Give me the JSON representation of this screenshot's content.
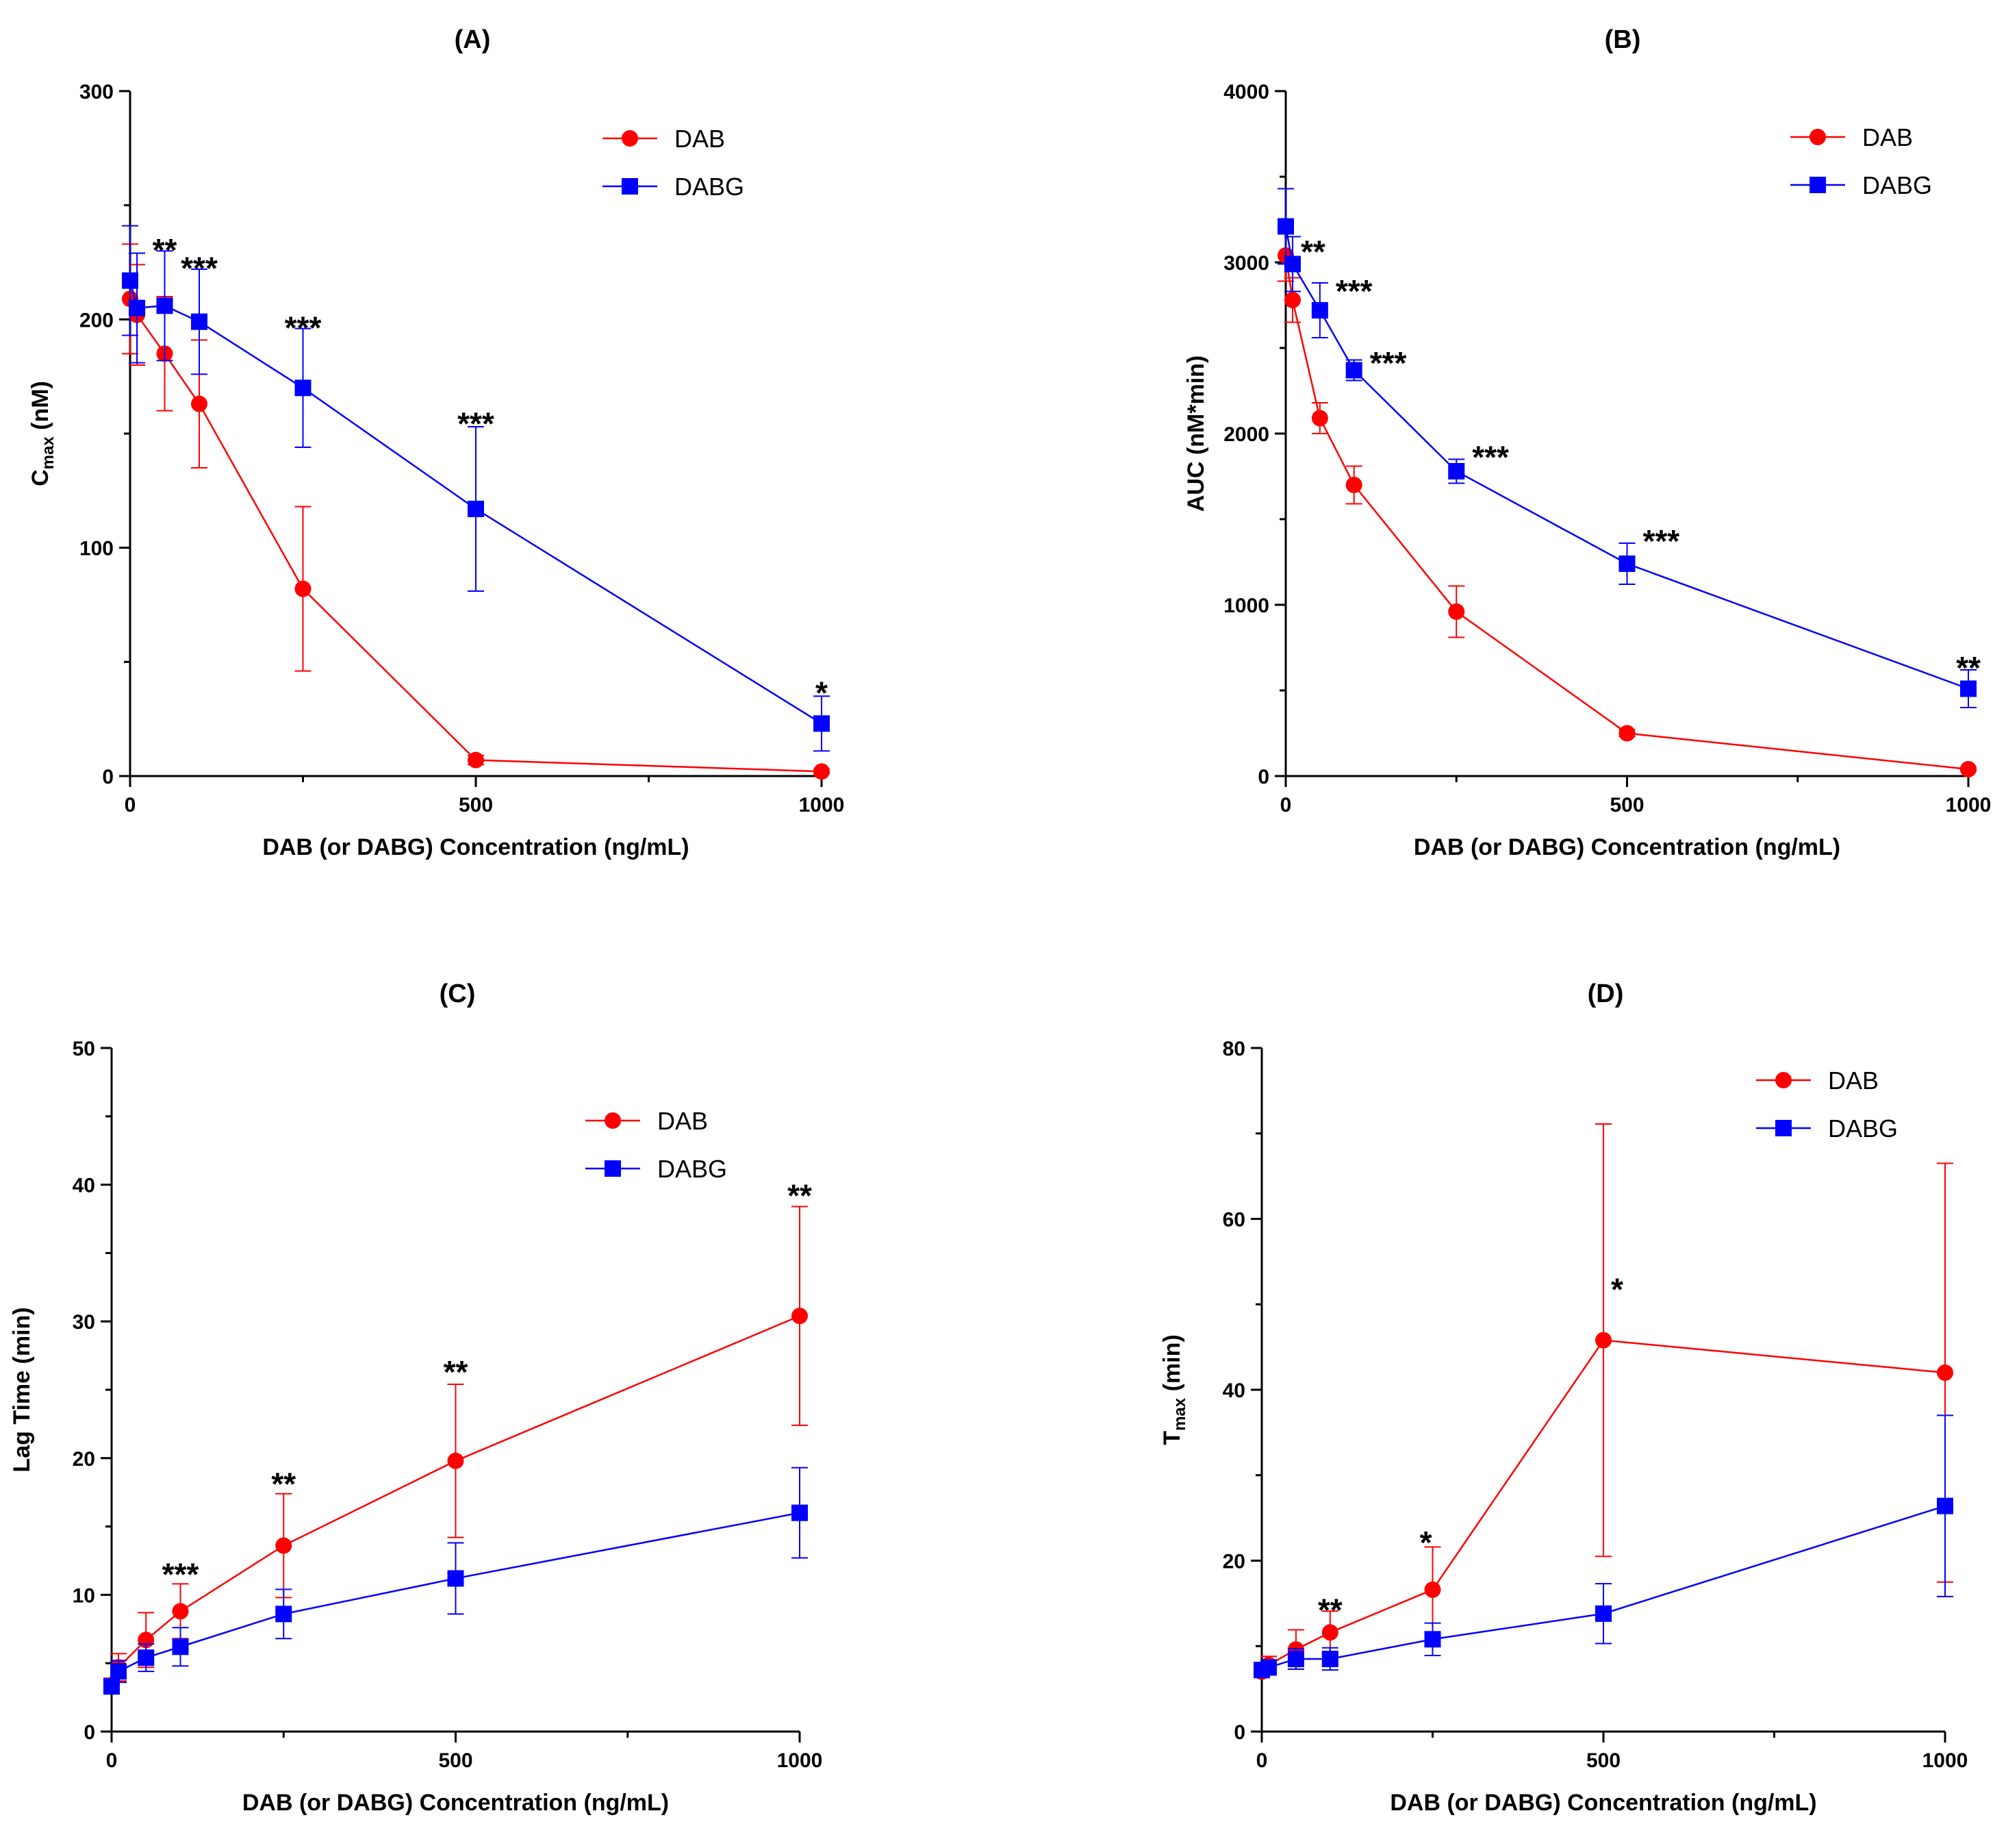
{
  "colors": {
    "dab": "#ff0000",
    "dabg": "#0000ff",
    "axis": "#000000"
  },
  "chart_data": [
    {
      "id": "A",
      "type": "line",
      "title": "(A)",
      "xlabel": "DAB (or DABG) Concentration (ng/mL)",
      "ylabel_main": "C",
      "ylabel_sub": "max",
      "ylabel_rest": " (nM)",
      "xlim": [
        0,
        1000
      ],
      "ylim": [
        0,
        300
      ],
      "xticks": [
        0,
        500,
        1000
      ],
      "yticks": [
        0,
        100,
        200,
        300
      ],
      "yminor": [
        50,
        150,
        250
      ],
      "legend": [
        "DAB",
        "DABG"
      ],
      "series": [
        {
          "name": "DAB",
          "marker": "circle",
          "x": [
            0,
            10,
            50,
            100,
            250,
            500,
            1000
          ],
          "y": [
            209,
            202,
            185,
            163,
            82,
            7,
            2
          ],
          "err": [
            24,
            22,
            25,
            28,
            36,
            2,
            1
          ]
        },
        {
          "name": "DABG",
          "marker": "square",
          "x": [
            0,
            10,
            50,
            100,
            250,
            500,
            1000
          ],
          "y": [
            217,
            205,
            206,
            199,
            170,
            117,
            23
          ],
          "err": [
            24,
            24,
            24,
            23,
            26,
            36,
            12
          ]
        }
      ],
      "annotations": [
        {
          "x": 50,
          "y": 231,
          "text": "**"
        },
        {
          "x": 100,
          "y": 223,
          "text": "***"
        },
        {
          "x": 250,
          "y": 197,
          "text": "***"
        },
        {
          "x": 500,
          "y": 155,
          "text": "***"
        },
        {
          "x": 1000,
          "y": 37,
          "text": "*"
        }
      ]
    },
    {
      "id": "B",
      "type": "line",
      "title": "(B)",
      "xlabel": "DAB (or DABG) Concentration (ng/mL)",
      "ylabel_main": "AUC (nM*min)",
      "ylabel_sub": "",
      "ylabel_rest": "",
      "xlim": [
        0,
        1000
      ],
      "ylim": [
        0,
        4000
      ],
      "xticks": [
        0,
        500,
        1000
      ],
      "yticks": [
        0,
        1000,
        2000,
        3000,
        4000
      ],
      "yminor": [
        500,
        1500,
        2500,
        3500
      ],
      "legend": [
        "DAB",
        "DABG"
      ],
      "series": [
        {
          "name": "DAB",
          "marker": "circle",
          "x": [
            0,
            10,
            50,
            100,
            250,
            500,
            1000
          ],
          "y": [
            3040,
            2780,
            2090,
            1700,
            960,
            250,
            40
          ],
          "err": [
            150,
            130,
            90,
            110,
            150,
            20,
            10
          ]
        },
        {
          "name": "DABG",
          "marker": "square",
          "x": [
            0,
            10,
            50,
            100,
            250,
            500,
            1000
          ],
          "y": [
            3210,
            2990,
            2720,
            2370,
            1780,
            1240,
            510
          ],
          "err": [
            220,
            160,
            160,
            60,
            70,
            120,
            110
          ]
        }
      ],
      "annotations": [
        {
          "x": 40,
          "y": 3070,
          "text": "**"
        },
        {
          "x": 100,
          "y": 2840,
          "text": "***"
        },
        {
          "x": 150,
          "y": 2420,
          "text": "***"
        },
        {
          "x": 300,
          "y": 1870,
          "text": "***"
        },
        {
          "x": 550,
          "y": 1380,
          "text": "***"
        },
        {
          "x": 1000,
          "y": 640,
          "text": "**"
        }
      ]
    },
    {
      "id": "C",
      "type": "line",
      "title": "(C)",
      "xlabel": "DAB (or DABG) Concentration (ng/mL)",
      "ylabel_main": "Lag  Time (min)",
      "ylabel_sub": "",
      "ylabel_rest": "",
      "xlim": [
        0,
        1000
      ],
      "ylim": [
        0,
        50
      ],
      "xticks": [
        0,
        500,
        1000
      ],
      "yticks": [
        0,
        10,
        20,
        30,
        40,
        50
      ],
      "yminor": [
        5,
        15,
        25,
        35,
        45
      ],
      "legend": [
        "DAB",
        "DABG"
      ],
      "series": [
        {
          "name": "DAB",
          "marker": "circle",
          "x": [
            0,
            10,
            50,
            100,
            250,
            500,
            1000
          ],
          "y": [
            3.4,
            4.7,
            6.7,
            8.8,
            13.6,
            19.8,
            30.4
          ],
          "err": [
            0.5,
            1.0,
            2.0,
            2.0,
            3.8,
            5.6,
            8.0
          ]
        },
        {
          "name": "DABG",
          "marker": "square",
          "x": [
            0,
            10,
            50,
            100,
            250,
            500,
            1000
          ],
          "y": [
            3.3,
            4.4,
            5.4,
            6.2,
            8.6,
            11.2,
            16.0
          ],
          "err": [
            0.5,
            0.8,
            1.0,
            1.4,
            1.8,
            2.6,
            3.3
          ]
        }
      ],
      "annotations": [
        {
          "x": 100,
          "y": 11.6,
          "text": "***"
        },
        {
          "x": 250,
          "y": 18.2,
          "text": "**"
        },
        {
          "x": 500,
          "y": 26.4,
          "text": "**"
        },
        {
          "x": 1000,
          "y": 39.3,
          "text": "**"
        }
      ]
    },
    {
      "id": "D",
      "type": "line",
      "title": "(D)",
      "xlabel": "DAB (or DABG) Concentration (ng/mL)",
      "ylabel_main": "T",
      "ylabel_sub": "max",
      "ylabel_rest": " (min)",
      "xlim": [
        0,
        1000
      ],
      "ylim": [
        0,
        80
      ],
      "xticks": [
        0,
        500,
        1000
      ],
      "yticks": [
        0,
        20,
        40,
        60,
        80
      ],
      "yminor": [
        10,
        30,
        50,
        70
      ],
      "legend": [
        "DAB",
        "DABG"
      ],
      "series": [
        {
          "name": "DAB",
          "marker": "circle",
          "x": [
            0,
            10,
            50,
            100,
            250,
            500,
            1000
          ],
          "y": [
            7.0,
            7.8,
            9.6,
            11.6,
            16.6,
            45.8,
            42.0
          ],
          "err": [
            0.6,
            1.0,
            2.3,
            2.5,
            5.0,
            25.3,
            24.5
          ]
        },
        {
          "name": "DABG",
          "marker": "square",
          "x": [
            0,
            10,
            50,
            100,
            250,
            500,
            1000
          ],
          "y": [
            7.2,
            7.5,
            8.5,
            8.5,
            10.8,
            13.8,
            26.4
          ],
          "err": [
            0.6,
            0.8,
            1.2,
            1.3,
            1.9,
            3.5,
            10.6
          ]
        }
      ],
      "annotations": [
        {
          "x": 100,
          "y": 14.4,
          "text": "**"
        },
        {
          "x": 240,
          "y": 22.3,
          "text": "*"
        },
        {
          "x": 520,
          "y": 51.9,
          "text": "*"
        }
      ]
    }
  ]
}
